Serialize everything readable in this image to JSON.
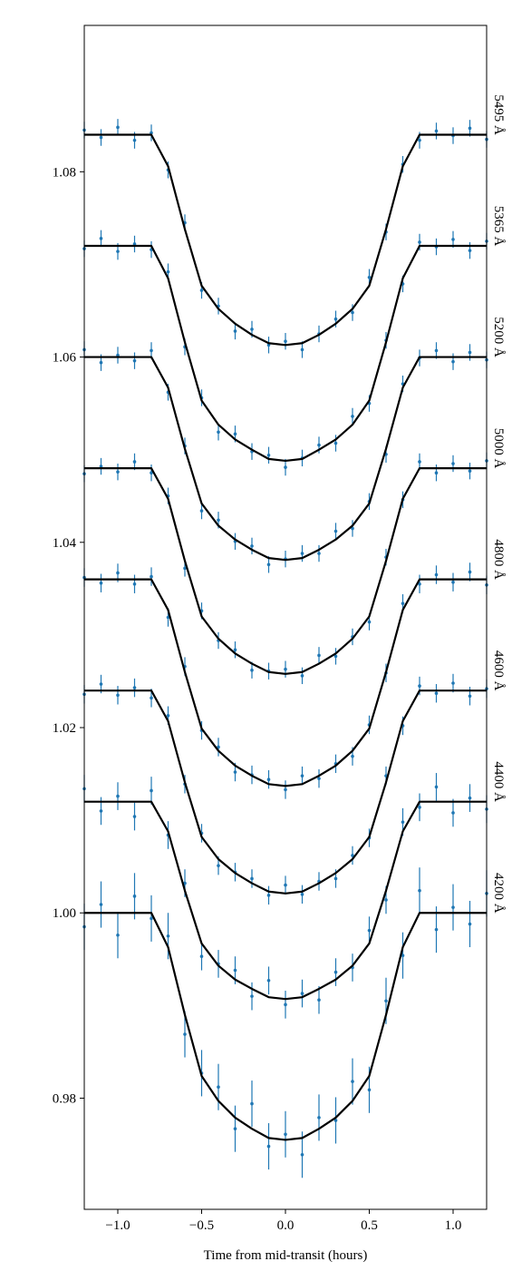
{
  "chart_data": {
    "type": "transit",
    "xlabel": "Time from mid-transit (hours)",
    "xlim": [
      -1.2,
      1.2
    ],
    "ylim": [
      0.968,
      1.0958
    ],
    "xticks": [
      {
        "value": -1,
        "label": "−1.0"
      },
      {
        "value": -0.5,
        "label": "−0.5"
      },
      {
        "value": 0,
        "label": "0.0"
      },
      {
        "value": 0.5,
        "label": "0.5"
      },
      {
        "value": 1,
        "label": "1.0"
      }
    ],
    "yticks": [
      0.98,
      {
        "value": 1,
        "label": "1.00"
      },
      1.02,
      1.04,
      1.06,
      1.08
    ],
    "model_color": "#000000",
    "x": [
      -1.2,
      -1.1,
      -1.0,
      -0.9,
      -0.8,
      -0.7,
      -0.6,
      -0.5,
      -0.4,
      -0.3,
      -0.2,
      -0.1,
      0,
      0.1,
      0.2,
      0.3,
      0.4,
      0.5,
      0.6,
      0.7,
      0.8,
      0.9,
      1.0,
      1.1,
      1.2
    ],
    "series": [
      {
        "name": "5495 Å",
        "color": "#1f77b4",
        "error": 0.0009,
        "values": [
          1.0845,
          1.0837,
          1.0848,
          1.0834,
          1.0842,
          1.0802,
          1.0745,
          1.0672,
          1.0655,
          1.0628,
          1.063,
          1.0613,
          1.0617,
          1.0608,
          1.0625,
          1.0641,
          1.0648,
          1.0686,
          1.0735,
          1.0808,
          1.0834,
          1.0844,
          1.0839,
          1.0847,
          1.0835
        ],
        "model": [
          1.084,
          1.084,
          1.084,
          1.084,
          1.084,
          1.0806,
          1.0738,
          1.0677,
          1.0652,
          1.0636,
          1.0624,
          1.0615,
          1.0613,
          1.0615,
          1.0624,
          1.0636,
          1.0652,
          1.0677,
          1.0738,
          1.0806,
          1.084,
          1.084,
          1.084,
          1.084,
          1.084
        ]
      },
      {
        "name": "5365 Å",
        "color": "#1f77b4",
        "error": 0.0009,
        "values": [
          1.0717,
          1.0728,
          1.0714,
          1.0722,
          1.0716,
          1.0692,
          1.0611,
          1.0556,
          1.0519,
          1.0517,
          1.0498,
          1.0494,
          1.0481,
          1.0491,
          1.0505,
          1.0507,
          1.0536,
          1.055,
          1.0618,
          1.0679,
          1.0724,
          1.0719,
          1.0727,
          1.0715,
          1.0725
        ],
        "model": [
          1.072,
          1.072,
          1.072,
          1.072,
          1.072,
          1.0685,
          1.0616,
          1.0553,
          1.0527,
          1.0511,
          1.05,
          1.049,
          1.0488,
          1.049,
          1.05,
          1.0511,
          1.0527,
          1.0553,
          1.0616,
          1.0685,
          1.072,
          1.072,
          1.072,
          1.072,
          1.072
        ]
      },
      {
        "name": "5200 Å",
        "color": "#1f77b4",
        "error": 0.0009,
        "values": [
          1.0608,
          1.0594,
          1.0602,
          1.0596,
          1.0607,
          1.0562,
          1.0504,
          1.0434,
          1.0424,
          1.0401,
          1.0396,
          1.0376,
          1.0382,
          1.0388,
          1.0388,
          1.0412,
          1.0415,
          1.0444,
          1.0495,
          1.0571,
          1.0599,
          1.0607,
          1.0595,
          1.0605,
          1.0597
        ],
        "model": [
          1.06,
          1.06,
          1.06,
          1.06,
          1.06,
          1.0567,
          1.0501,
          1.0442,
          1.0418,
          1.0403,
          1.0392,
          1.0383,
          1.0381,
          1.0383,
          1.0392,
          1.0403,
          1.0418,
          1.0442,
          1.0501,
          1.0567,
          1.06,
          1.06,
          1.06,
          1.06,
          1.06
        ]
      },
      {
        "name": "5000 Å",
        "color": "#1f77b4",
        "error": 0.0009,
        "values": [
          1.0474,
          1.0482,
          1.0476,
          1.0487,
          1.0475,
          1.045,
          1.0372,
          1.0326,
          1.0294,
          1.0284,
          1.0262,
          1.0261,
          1.0263,
          1.0256,
          1.0278,
          1.0277,
          1.0298,
          1.0314,
          1.0384,
          1.0446,
          1.0487,
          1.0475,
          1.0485,
          1.0477,
          1.0488
        ],
        "model": [
          1.048,
          1.048,
          1.048,
          1.048,
          1.048,
          1.0447,
          1.038,
          1.032,
          1.0296,
          1.028,
          1.0269,
          1.026,
          1.0258,
          1.026,
          1.0269,
          1.028,
          1.0296,
          1.032,
          1.038,
          1.0447,
          1.048,
          1.048,
          1.048,
          1.048,
          1.048
        ]
      },
      {
        "name": "4800 Å",
        "color": "#1f77b4",
        "error": 0.001,
        "values": [
          1.0362,
          1.0356,
          1.0367,
          1.0355,
          1.0363,
          1.0319,
          1.0266,
          1.0197,
          1.0179,
          1.0152,
          1.0149,
          1.0144,
          1.0133,
          1.0148,
          1.0145,
          1.0161,
          1.0169,
          1.0203,
          1.0259,
          1.0334,
          1.0355,
          1.0365,
          1.0357,
          1.0368,
          1.0354
        ],
        "model": [
          1.036,
          1.036,
          1.036,
          1.036,
          1.036,
          1.0327,
          1.026,
          1.0199,
          1.0175,
          1.0159,
          1.0148,
          1.0139,
          1.0137,
          1.0139,
          1.0148,
          1.0159,
          1.0175,
          1.0199,
          1.026,
          1.0327,
          1.036,
          1.036,
          1.036,
          1.036,
          1.036
        ]
      },
      {
        "name": "4600 Å",
        "color": "#1f77b4",
        "error": 0.001,
        "values": [
          1.0236,
          1.0247,
          1.0235,
          1.0243,
          1.0232,
          1.0213,
          1.0139,
          1.0086,
          1.0051,
          1.0044,
          1.0037,
          1.0019,
          1.003,
          1.002,
          1.0034,
          1.0037,
          1.0062,
          1.0081,
          1.0148,
          1.0202,
          1.0245,
          1.0237,
          1.0248,
          1.0234,
          1.0242
        ],
        "model": [
          1.024,
          1.024,
          1.024,
          1.024,
          1.024,
          1.0207,
          1.0141,
          1.0082,
          1.0058,
          1.0043,
          1.0032,
          1.0023,
          1.0021,
          1.0023,
          1.0032,
          1.0043,
          1.0058,
          1.0082,
          1.0141,
          1.0207,
          1.024,
          1.024,
          1.024,
          1.024,
          1.024
        ]
      },
      {
        "name": "4400 Å",
        "color": "#1f77b4",
        "error": 0.0015,
        "values": [
          1.0134,
          1.011,
          1.0126,
          1.0104,
          1.0132,
          1.0084,
          1.0032,
          0.9953,
          0.9945,
          0.9938,
          0.991,
          0.9927,
          0.9901,
          0.9913,
          0.9906,
          0.9936,
          0.9941,
          0.9981,
          1.0014,
          1.0098,
          1.0114,
          1.0136,
          1.0108,
          1.0124,
          1.0112
        ],
        "model": [
          1.012,
          1.012,
          1.012,
          1.012,
          1.012,
          1.0088,
          1.0024,
          0.9967,
          0.9943,
          0.9928,
          0.9918,
          0.9909,
          0.9907,
          0.9909,
          0.9918,
          0.9928,
          0.9943,
          0.9967,
          1.0024,
          1.0088,
          1.012,
          1.012,
          1.012,
          1.012,
          1.012
        ]
      },
      {
        "name": "4200 Å",
        "color": "#1f77b4",
        "error": 0.0025,
        "values": [
          0.9985,
          1.0009,
          0.9976,
          1.0018,
          0.9994,
          0.9975,
          0.9869,
          0.9827,
          0.9812,
          0.9767,
          0.9794,
          0.9748,
          0.9761,
          0.9739,
          0.9779,
          0.9776,
          0.9818,
          0.9809,
          0.9905,
          0.9954,
          1.0024,
          0.9982,
          1.0006,
          0.9988,
          1.0021
        ],
        "model": [
          1,
          1,
          1,
          1,
          1,
          0.9963,
          0.989,
          0.9824,
          0.9797,
          0.9779,
          0.9767,
          0.9757,
          0.9755,
          0.9757,
          0.9767,
          0.9779,
          0.9797,
          0.9824,
          0.989,
          0.9963,
          1,
          1,
          1,
          1,
          1
        ]
      }
    ]
  }
}
